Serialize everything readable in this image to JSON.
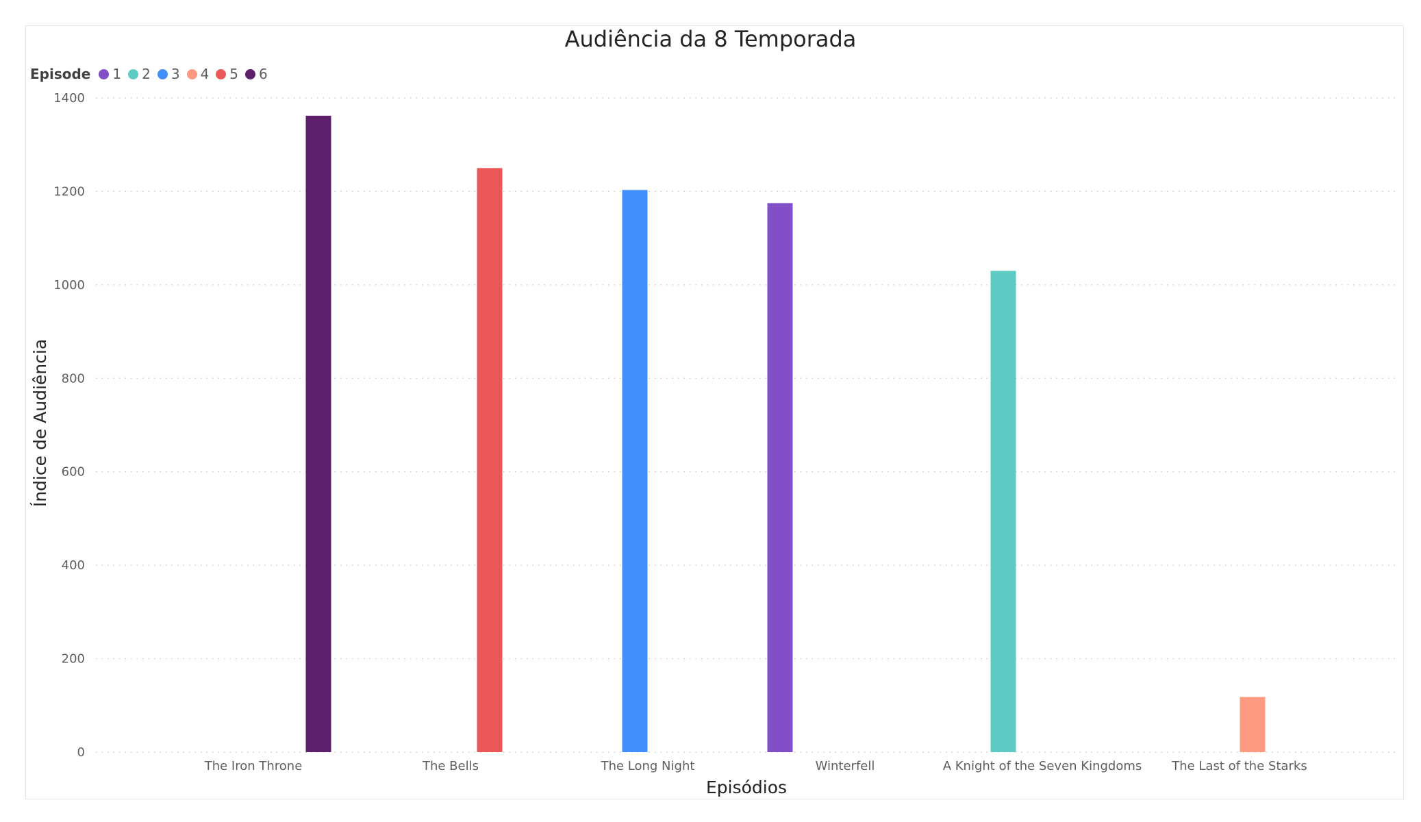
{
  "chart_data": {
    "type": "bar",
    "title": "Audiência da 8 Temporada",
    "xlabel": "Episódios",
    "ylabel": "Índice de Audiência",
    "ylim": [
      0,
      1400
    ],
    "yticks": [
      0,
      200,
      400,
      600,
      800,
      1000,
      1200,
      1400
    ],
    "grid": true,
    "legend_position": "top-left",
    "legend_title": "Episode",
    "legend": [
      {
        "name": "1",
        "color": "#8150c8"
      },
      {
        "name": "2",
        "color": "#5ecbc5"
      },
      {
        "name": "3",
        "color": "#428efc"
      },
      {
        "name": "4",
        "color": "#fd9a81"
      },
      {
        "name": "5",
        "color": "#e95759"
      },
      {
        "name": "6",
        "color": "#5c1f6a"
      }
    ],
    "categories": [
      "The Iron Throne",
      "The Bells",
      "The Long Night",
      "Winterfell",
      "A Knight of the Seven Kingdoms",
      "The Last of the Starks"
    ],
    "series": [
      {
        "name": "1",
        "values": [
          null,
          null,
          null,
          1175,
          null,
          null
        ]
      },
      {
        "name": "2",
        "values": [
          null,
          null,
          null,
          null,
          1030,
          null
        ]
      },
      {
        "name": "3",
        "values": [
          null,
          null,
          1203,
          null,
          null,
          null
        ]
      },
      {
        "name": "4",
        "values": [
          null,
          null,
          null,
          null,
          null,
          118
        ]
      },
      {
        "name": "5",
        "values": [
          null,
          1250,
          null,
          null,
          null,
          null
        ]
      },
      {
        "name": "6",
        "values": [
          1362,
          null,
          null,
          null,
          null,
          null
        ]
      }
    ]
  }
}
